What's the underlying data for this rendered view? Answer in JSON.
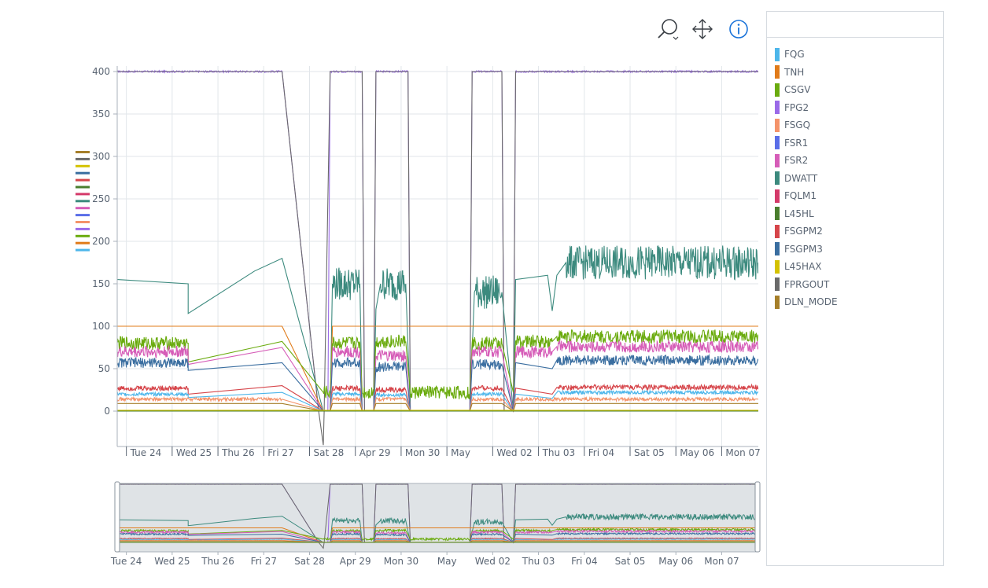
{
  "toolbar": {
    "zoom_icon": "magnifier-zoom-icon",
    "pan_icon": "move-arrows-icon",
    "info_icon": "info-circle-icon",
    "info_color": "#1a73d9"
  },
  "legend": {
    "items": [
      {
        "name": "FQG",
        "color": "#4db6ea"
      },
      {
        "name": "TNH",
        "color": "#e07b1a"
      },
      {
        "name": "CSGV",
        "color": "#6aab0e"
      },
      {
        "name": "FPG2",
        "color": "#9a6ae8"
      },
      {
        "name": "FSGQ",
        "color": "#f4936a"
      },
      {
        "name": "FSR1",
        "color": "#5a6ee8"
      },
      {
        "name": "FSR2",
        "color": "#d65db8"
      },
      {
        "name": "DWATT",
        "color": "#3c8a7e"
      },
      {
        "name": "FQLM1",
        "color": "#d43a6a"
      },
      {
        "name": "L45HL",
        "color": "#4a7e2e"
      },
      {
        "name": "FSGPM2",
        "color": "#d6454a"
      },
      {
        "name": "FSGPM3",
        "color": "#3a6ea0"
      },
      {
        "name": "L45HAX",
        "color": "#d4c200"
      },
      {
        "name": "FPRGOUT",
        "color": "#6a6a6a"
      },
      {
        "name": "DLN_MODE",
        "color": "#a67f2a"
      }
    ]
  },
  "chart_data": {
    "type": "line",
    "y_axis": {
      "ticks": [
        0,
        50,
        100,
        150,
        200,
        250,
        300,
        350,
        400
      ],
      "range": [
        -40,
        402
      ]
    },
    "x_axis": {
      "unit": "day",
      "range": [
        23.8,
        37.8
      ],
      "ticks": [
        {
          "label": "Tue 24",
          "x": 24
        },
        {
          "label": "Wed 25",
          "x": 25
        },
        {
          "label": "Thu 26",
          "x": 26
        },
        {
          "label": "Fri 27",
          "x": 27
        },
        {
          "label": "Sat 28",
          "x": 28
        },
        {
          "label": "Apr 29",
          "x": 29
        },
        {
          "label": "Mon 30",
          "x": 30
        },
        {
          "label": "May",
          "x": 31
        },
        {
          "label": "Wed 02",
          "x": 32
        },
        {
          "label": "Thu 03",
          "x": 33
        },
        {
          "label": "Fri 04",
          "x": 34
        },
        {
          "label": "Sat 05",
          "x": 35
        },
        {
          "label": "May 06",
          "x": 36
        },
        {
          "label": "Mon 07",
          "x": 37
        }
      ]
    },
    "grid": true,
    "legend_position": "right",
    "range_selector": true,
    "series": [
      {
        "name": "FPG2",
        "color": "#9a6ae8",
        "noise": 1,
        "x": [
          23.8,
          27.4,
          28.2,
          28.4,
          28.45,
          28.5,
          29.15,
          29.2,
          29.4,
          29.45,
          30.15,
          30.2,
          31.5,
          31.55,
          32.2,
          32.25,
          32.45,
          32.5,
          37.8
        ],
        "y": [
          400,
          400,
          0,
          0,
          400,
          400,
          400,
          0,
          0,
          400,
          400,
          0,
          0,
          400,
          400,
          0,
          0,
          400,
          400
        ]
      },
      {
        "name": "FPRGOUT",
        "color": "#6a6a6a",
        "noise": 0,
        "x": [
          23.8,
          27.4,
          28.2,
          28.3,
          28.32,
          28.45,
          28.5,
          29.15,
          29.2,
          29.4,
          29.45,
          30.15,
          30.2,
          31.5,
          31.55,
          32.2,
          32.25,
          32.45,
          32.5,
          37.8
        ],
        "y": [
          400,
          400,
          0,
          -40,
          0,
          400,
          400,
          400,
          0,
          0,
          400,
          400,
          0,
          0,
          400,
          400,
          0,
          0,
          400,
          400
        ]
      },
      {
        "name": "DWATT",
        "color": "#3c8a7e",
        "noise": 20,
        "x": [
          23.8,
          25.35,
          25.35,
          26.8,
          27.4,
          28.3,
          28.45,
          28.5,
          29.1,
          29.15,
          29.4,
          29.45,
          29.55,
          30.1,
          30.2,
          31.5,
          31.6,
          32.2,
          32.45,
          32.5,
          33.2,
          33.3,
          33.4,
          33.6,
          37.8
        ],
        "y": [
          155,
          150,
          115,
          165,
          180,
          0,
          0,
          150,
          150,
          0,
          0,
          120,
          150,
          150,
          0,
          0,
          140,
          140,
          0,
          155,
          160,
          118,
          160,
          175,
          175
        ]
      },
      {
        "name": "TNH",
        "color": "#e07b1a",
        "noise": 0,
        "x": [
          23.8,
          27.4,
          28.3,
          28.45,
          28.5,
          37.8
        ],
        "y": [
          100,
          100,
          0,
          0,
          100,
          100
        ]
      },
      {
        "name": "CSGV",
        "color": "#6aab0e",
        "noise": 8,
        "x": [
          23.8,
          25.35,
          25.35,
          26.8,
          27.4,
          28.3,
          28.45,
          28.5,
          29.1,
          29.15,
          29.4,
          29.45,
          30.1,
          30.2,
          31.5,
          31.55,
          32.2,
          32.45,
          32.5,
          33.3,
          33.4,
          37.8
        ],
        "y": [
          80,
          80,
          58,
          75,
          82,
          22,
          22,
          80,
          80,
          22,
          22,
          82,
          82,
          22,
          22,
          80,
          80,
          22,
          82,
          82,
          88,
          88
        ]
      },
      {
        "name": "FSR2",
        "color": "#d65db8",
        "noise": 7,
        "x": [
          23.8,
          25.35,
          25.35,
          27.4,
          28.3,
          28.45,
          28.5,
          29.1,
          29.15,
          29.4,
          29.45,
          30.1,
          30.2,
          31.5,
          31.55,
          32.2,
          32.45,
          32.5,
          33.3,
          33.4,
          37.8
        ],
        "y": [
          70,
          70,
          55,
          75,
          0,
          0,
          70,
          70,
          0,
          0,
          65,
          65,
          0,
          0,
          70,
          70,
          0,
          70,
          70,
          76,
          76
        ]
      },
      {
        "name": "FSGPM3",
        "color": "#3a6ea0",
        "noise": 6,
        "x": [
          23.8,
          25.35,
          25.35,
          27.4,
          28.3,
          28.45,
          28.5,
          29.1,
          29.15,
          29.4,
          29.45,
          30.1,
          30.2,
          31.5,
          31.55,
          32.2,
          32.45,
          32.5,
          33.3,
          33.4,
          37.8
        ],
        "y": [
          57,
          57,
          48,
          57,
          0,
          0,
          57,
          57,
          0,
          0,
          52,
          52,
          0,
          0,
          55,
          55,
          0,
          57,
          50,
          60,
          60
        ]
      },
      {
        "name": "FSGPM2",
        "color": "#d6454a",
        "noise": 3,
        "x": [
          23.8,
          25.35,
          25.35,
          27.4,
          28.3,
          28.45,
          28.5,
          29.1,
          29.15,
          29.4,
          29.45,
          30.1,
          30.2,
          31.5,
          31.55,
          32.2,
          32.45,
          32.5,
          33.3,
          33.4,
          37.8
        ],
        "y": [
          27,
          27,
          20,
          30,
          0,
          0,
          27,
          27,
          0,
          0,
          25,
          25,
          0,
          0,
          27,
          27,
          0,
          27,
          20,
          28,
          28
        ]
      },
      {
        "name": "FQG",
        "color": "#4db6ea",
        "noise": 2,
        "x": [
          23.8,
          25.35,
          25.35,
          27.4,
          28.3,
          28.45,
          28.5,
          29.1,
          29.15,
          29.4,
          29.45,
          30.1,
          30.2,
          31.5,
          31.55,
          32.2,
          32.45,
          32.5,
          33.3,
          33.4,
          37.8
        ],
        "y": [
          20,
          20,
          16,
          22,
          0,
          0,
          20,
          20,
          0,
          0,
          19,
          19,
          0,
          0,
          20,
          20,
          0,
          20,
          15,
          22,
          22
        ]
      },
      {
        "name": "FSGQ",
        "color": "#f4936a",
        "noise": 2,
        "x": [
          23.8,
          27.4,
          28.3,
          28.45,
          28.5,
          29.1,
          29.15,
          29.4,
          29.45,
          30.1,
          30.2,
          31.5,
          31.55,
          32.2,
          32.45,
          32.5,
          37.8
        ],
        "y": [
          14,
          14,
          0,
          0,
          14,
          14,
          0,
          0,
          14,
          14,
          0,
          0,
          14,
          14,
          0,
          14,
          14
        ]
      },
      {
        "name": "DLN_MODE",
        "color": "#a67f2a",
        "noise": 0,
        "x": [
          23.8,
          27.4,
          28.3,
          28.45,
          28.5,
          29.1,
          29.15,
          29.4,
          29.45,
          30.1,
          30.2,
          31.5,
          31.55,
          32.2,
          32.45,
          32.5,
          37.8
        ],
        "y": [
          9,
          9,
          0,
          0,
          9,
          9,
          0,
          0,
          9,
          9,
          0,
          0,
          9,
          9,
          0,
          9,
          9
        ]
      },
      {
        "name": "L45HAX",
        "color": "#d4c200",
        "noise": 0,
        "x": [
          23.8,
          37.8
        ],
        "y": [
          1,
          1
        ]
      },
      {
        "name": "L45HL",
        "color": "#4a7e2e",
        "noise": 0,
        "x": [
          23.8,
          37.8
        ],
        "y": [
          0,
          0
        ]
      }
    ]
  }
}
